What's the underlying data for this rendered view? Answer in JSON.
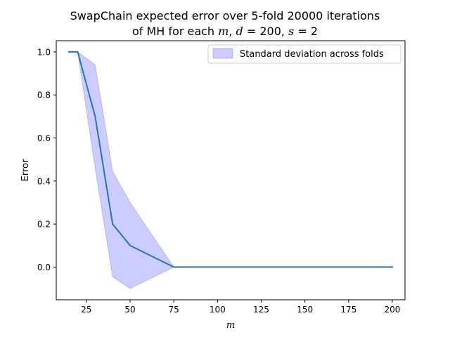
{
  "chart_data": {
    "type": "line",
    "title": {
      "line1": "SwapChain expected error over 5-fold 20000 iterations",
      "line2_prefix": "of MH for each ",
      "m_symbol": "m",
      "line2_mid": ", ",
      "d_symbol": "d",
      "d_value": " = 200, ",
      "s_symbol": "s",
      "s_value": " = 2"
    },
    "xlabel": "m",
    "ylabel": "Error",
    "xlim": [
      7.75,
      207.25
    ],
    "ylim": [
      -0.152,
      1.052
    ],
    "xticks": [
      25,
      50,
      75,
      100,
      125,
      150,
      175,
      200
    ],
    "yticks": [
      0.0,
      0.2,
      0.4,
      0.6,
      0.8,
      1.0
    ],
    "ytick_labels": [
      "0.0",
      "0.2",
      "0.4",
      "0.6",
      "0.8",
      "1.0"
    ],
    "grid": false,
    "legend_position": "top-right",
    "series": [
      {
        "kind": "line",
        "color": "#1f77b4",
        "x": [
          15,
          20,
          30,
          40,
          50,
          75,
          100,
          200
        ],
        "y": [
          1.0,
          1.0,
          0.7,
          0.2,
          0.1,
          0.0,
          0.0,
          0.0
        ]
      },
      {
        "name": "Standard deviation across folds",
        "kind": "band",
        "color": "#0000ff",
        "x": [
          15,
          20,
          30,
          40,
          50,
          75,
          100,
          200
        ],
        "lower": [
          1.0,
          1.0,
          0.46,
          -0.045,
          -0.1,
          0.0,
          0.0,
          0.0
        ],
        "upper": [
          1.0,
          1.0,
          0.94,
          0.445,
          0.3,
          0.0,
          0.0,
          0.0
        ]
      }
    ]
  }
}
